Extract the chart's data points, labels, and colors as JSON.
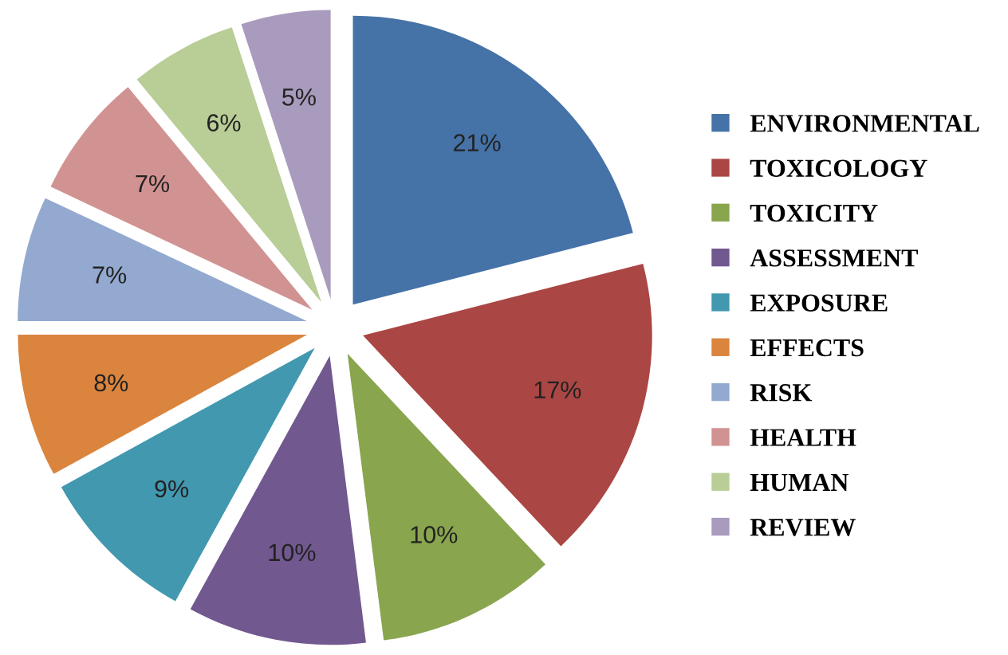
{
  "chart_data": {
    "type": "pie",
    "categories": [
      "ENVIRONMENTAL",
      "TOXICOLOGY",
      "TOXICITY",
      "ASSESSMENT",
      "EXPOSURE",
      "EFFECTS",
      "RISK",
      "HEALTH",
      "HUMAN",
      "REVIEW"
    ],
    "values": [
      21,
      17,
      10,
      10,
      9,
      8,
      7,
      7,
      6,
      5
    ],
    "colors": [
      "#4572a7",
      "#aa4643",
      "#89a54e",
      "#71588f",
      "#4198af",
      "#db843d",
      "#93a9cf",
      "#d19392",
      "#b9cd96",
      "#a99bbd"
    ],
    "value_labels": [
      "21%",
      "17%",
      "10%",
      "10%",
      "9%",
      "8%",
      "7%",
      "7%",
      "6%",
      "5%"
    ],
    "legend": "right"
  }
}
